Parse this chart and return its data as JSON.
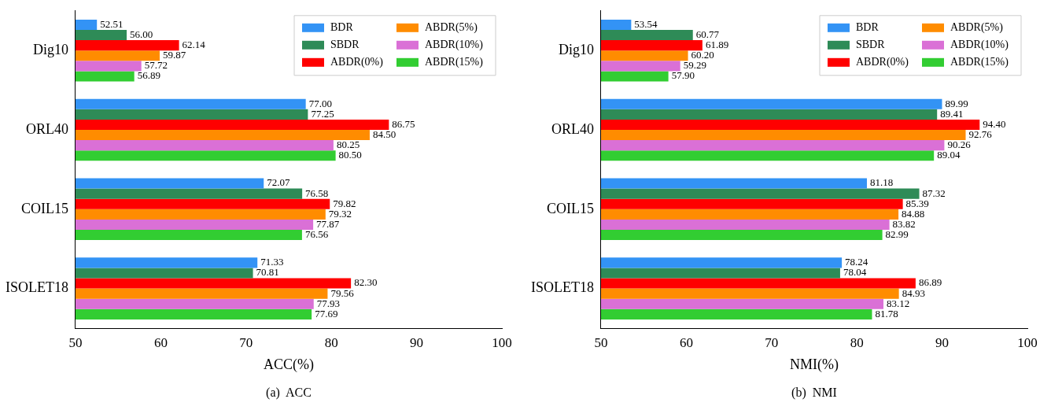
{
  "chart_data": [
    {
      "type": "bar",
      "orientation": "horizontal",
      "xlabel": "ACC(%)",
      "categories": [
        "Dig10",
        "ORL40",
        "COIL15",
        "ISOLET18"
      ],
      "xlim": [
        50,
        100
      ],
      "xticks": [
        50,
        60,
        70,
        80,
        90,
        100
      ],
      "grid": false,
      "legend": "top right",
      "annotations": [
        "(a)  ACC"
      ],
      "series": [
        {
          "name": "BDR",
          "color": "#3393f5",
          "values": [
            52.51,
            77.0,
            72.07,
            71.33
          ],
          "value_labels": [
            "52.51",
            "77.00",
            "72.07",
            "71.33"
          ]
        },
        {
          "name": "SBDR",
          "color": "#2e8b57",
          "values": [
            56.0,
            77.25,
            76.58,
            70.81
          ],
          "value_labels": [
            "56.00",
            "77.25",
            "76.58",
            "70.81"
          ]
        },
        {
          "name": "ABDR(0%)",
          "color": "#ff0000",
          "values": [
            62.14,
            86.75,
            79.82,
            82.3
          ],
          "value_labels": [
            "62.14",
            "86.75",
            "79.82",
            "82.30"
          ]
        },
        {
          "name": "ABDR(5%)",
          "color": "#ff8c00",
          "values": [
            59.87,
            84.5,
            79.32,
            79.56
          ],
          "value_labels": [
            "59.87",
            "84.50",
            "79.32",
            "79.56"
          ]
        },
        {
          "name": "ABDR(10%)",
          "color": "#da70d6",
          "values": [
            57.72,
            80.25,
            77.87,
            77.93
          ],
          "value_labels": [
            "57.72",
            "80.25",
            "77.87",
            "77.93"
          ]
        },
        {
          "name": "ABDR(15%)",
          "color": "#32cd32",
          "values": [
            56.89,
            80.5,
            76.56,
            77.69
          ],
          "value_labels": [
            "56.89",
            "80.50",
            "76.56",
            "77.69"
          ]
        }
      ]
    },
    {
      "type": "bar",
      "orientation": "horizontal",
      "xlabel": "NMI(%)",
      "categories": [
        "Dig10",
        "ORL40",
        "COIL15",
        "ISOLET18"
      ],
      "xlim": [
        50,
        100
      ],
      "xticks": [
        50,
        60,
        70,
        80,
        90,
        100
      ],
      "grid": false,
      "legend": "top right",
      "annotations": [
        "(b)  NMI"
      ],
      "series": [
        {
          "name": "BDR",
          "color": "#3393f5",
          "values": [
            53.54,
            89.99,
            81.18,
            78.24
          ],
          "value_labels": [
            "53.54",
            "89.99",
            "81.18",
            "78.24"
          ]
        },
        {
          "name": "SBDR",
          "color": "#2e8b57",
          "values": [
            60.77,
            89.41,
            87.32,
            78.04
          ],
          "value_labels": [
            "60.77",
            "89.41",
            "87.32",
            "78.04"
          ]
        },
        {
          "name": "ABDR(0%)",
          "color": "#ff0000",
          "values": [
            61.89,
            94.4,
            85.39,
            86.89
          ],
          "value_labels": [
            "61.89",
            "94.40",
            "85.39",
            "86.89"
          ]
        },
        {
          "name": "ABDR(5%)",
          "color": "#ff8c00",
          "values": [
            60.2,
            92.76,
            84.88,
            84.93
          ],
          "value_labels": [
            "60.20",
            "92.76",
            "84.88",
            "84.93"
          ]
        },
        {
          "name": "ABDR(10%)",
          "color": "#da70d6",
          "values": [
            59.29,
            90.26,
            83.82,
            83.12
          ],
          "value_labels": [
            "59.29",
            "90.26",
            "83.82",
            "83.12"
          ]
        },
        {
          "name": "ABDR(15%)",
          "color": "#32cd32",
          "values": [
            57.9,
            89.04,
            82.99,
            81.78
          ],
          "value_labels": [
            "57.90",
            "89.04",
            "82.99",
            "81.78"
          ]
        }
      ]
    }
  ]
}
